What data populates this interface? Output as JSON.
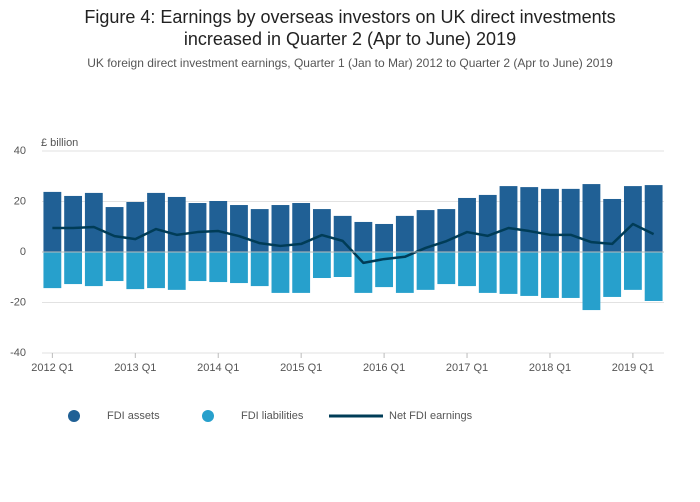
{
  "chart_data": {
    "type": "bar",
    "title": "Figure 4: Earnings by overseas investors on UK direct investments increased in Quarter 2 (Apr to June) 2019",
    "subtitle": "UK foreign direct investment earnings, Quarter 1 (Jan to Mar) 2012 to Quarter 2 (Apr to June) 2019",
    "y_label": "£ billion",
    "categories": [
      "2012 Q1",
      null,
      null,
      null,
      "2013 Q1",
      null,
      null,
      null,
      "2014 Q1",
      null,
      null,
      null,
      "2015 Q1",
      null,
      null,
      null,
      "2016 Q1",
      null,
      null,
      null,
      "2017 Q1",
      null,
      null,
      null,
      "2018 Q1",
      null,
      null,
      null,
      "2019 Q1",
      null
    ],
    "series": [
      {
        "name": "FDI assets",
        "type": "bar",
        "color": "#206095",
        "values": [
          23.8,
          22.2,
          23.4,
          17.8,
          19.8,
          23.4,
          21.8,
          19.4,
          20.2,
          18.6,
          17.0,
          18.6,
          19.4,
          17.0,
          14.3,
          11.9,
          11.1,
          14.3,
          16.6,
          17.0,
          21.4,
          22.6,
          26.1,
          25.7,
          25.0,
          25.0,
          26.9,
          21.0,
          26.1,
          26.5
        ]
      },
      {
        "name": "FDI liabilities",
        "type": "bar",
        "color": "#27a0cc",
        "values": [
          -14.3,
          -12.7,
          -13.5,
          -11.5,
          -14.7,
          -14.3,
          -15.0,
          -11.5,
          -11.9,
          -12.3,
          -13.5,
          -16.2,
          -16.2,
          -10.3,
          -9.9,
          -16.2,
          -13.9,
          -16.2,
          -15.0,
          -12.7,
          -13.5,
          -16.2,
          -16.6,
          -17.4,
          -18.2,
          -18.2,
          -23.0,
          -17.8,
          -15.0,
          -19.4
        ]
      },
      {
        "name": "Net FDI earnings",
        "type": "line",
        "color": "#003c57",
        "values": [
          9.5,
          9.5,
          9.9,
          6.3,
          5.1,
          9.1,
          6.8,
          7.9,
          8.3,
          6.3,
          3.5,
          2.4,
          3.2,
          6.7,
          4.4,
          -4.3,
          -2.8,
          -1.9,
          1.6,
          4.3,
          7.9,
          6.4,
          9.5,
          8.3,
          6.8,
          6.8,
          3.9,
          3.2,
          11.1,
          7.1
        ]
      }
    ],
    "ylim": [
      -40,
      40
    ],
    "yticks": [
      -40,
      -20,
      0,
      20,
      40
    ],
    "grid": true
  }
}
